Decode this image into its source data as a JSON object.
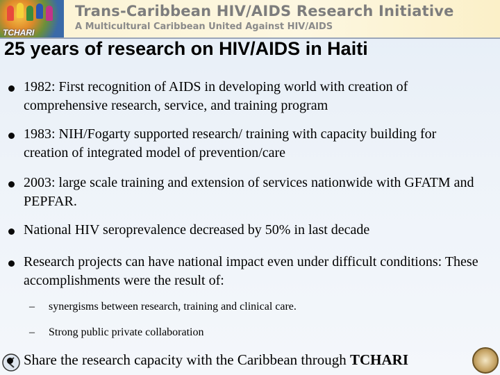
{
  "banner": {
    "title": "Trans-Caribbean HIV/AIDS Research Initiative",
    "subtitle": "A Multicultural Caribbean United Against HIV/AIDS",
    "logo_text": "TCHARI"
  },
  "slide": {
    "title": "25 years of research on HIV/AIDS in Haiti"
  },
  "bullets": [
    {
      "text": "1982: First recognition of AIDS in developing world with creation of comprehensive research, service, and training program"
    },
    {
      "text": "1983: NIH/Fogarty supported research/ training with capacity building for creation of integrated model of prevention/care"
    },
    {
      "text": "2003:  large scale training and extension of services nationwide with GFATM and PEPFAR."
    },
    {
      "text": "National HIV seroprevalence decreased by 50% in last decade"
    },
    {
      "text": "Research projects can have national impact even under difficult conditions: These accomplishments were the result of:"
    }
  ],
  "sub_bullets": [
    {
      "dash": "–",
      "text": " synergisms between research, training and clinical care."
    },
    {
      "dash": "–",
      "text": "Strong public private collaboration"
    }
  ],
  "last_bullet": {
    "text": "Share the research capacity with the Caribbean through ",
    "emphasis": "TCHARI"
  },
  "colors": {
    "banner_text": "#7d7d7d",
    "rule": "#9aa5b8",
    "background": "#eef3f9"
  }
}
